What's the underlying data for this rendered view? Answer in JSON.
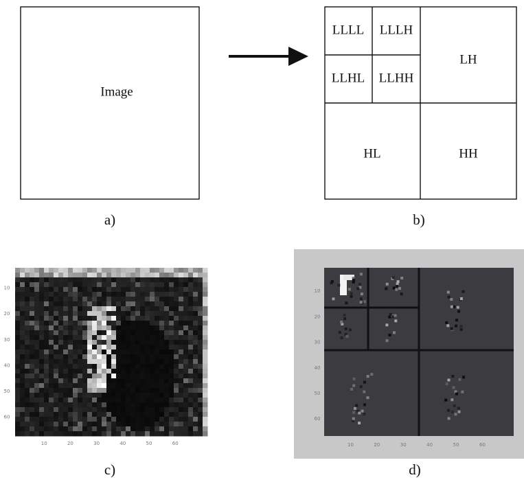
{
  "panels": [
    {
      "label": "a)",
      "text": "Image"
    },
    {
      "label": "b)",
      "subbands": [
        "LLLL",
        "LLLH",
        "LLHL",
        "LLHH",
        "LH",
        "HL",
        "HH"
      ]
    },
    {
      "label": "c)",
      "xticks": [
        10,
        20,
        30,
        40,
        50,
        60
      ],
      "yticks": [
        10,
        20,
        30,
        40,
        50,
        60
      ]
    },
    {
      "label": "d)",
      "xticks": [
        10,
        20,
        30,
        40,
        50,
        60
      ],
      "yticks": [
        10,
        20,
        30,
        40,
        50,
        60
      ]
    }
  ]
}
